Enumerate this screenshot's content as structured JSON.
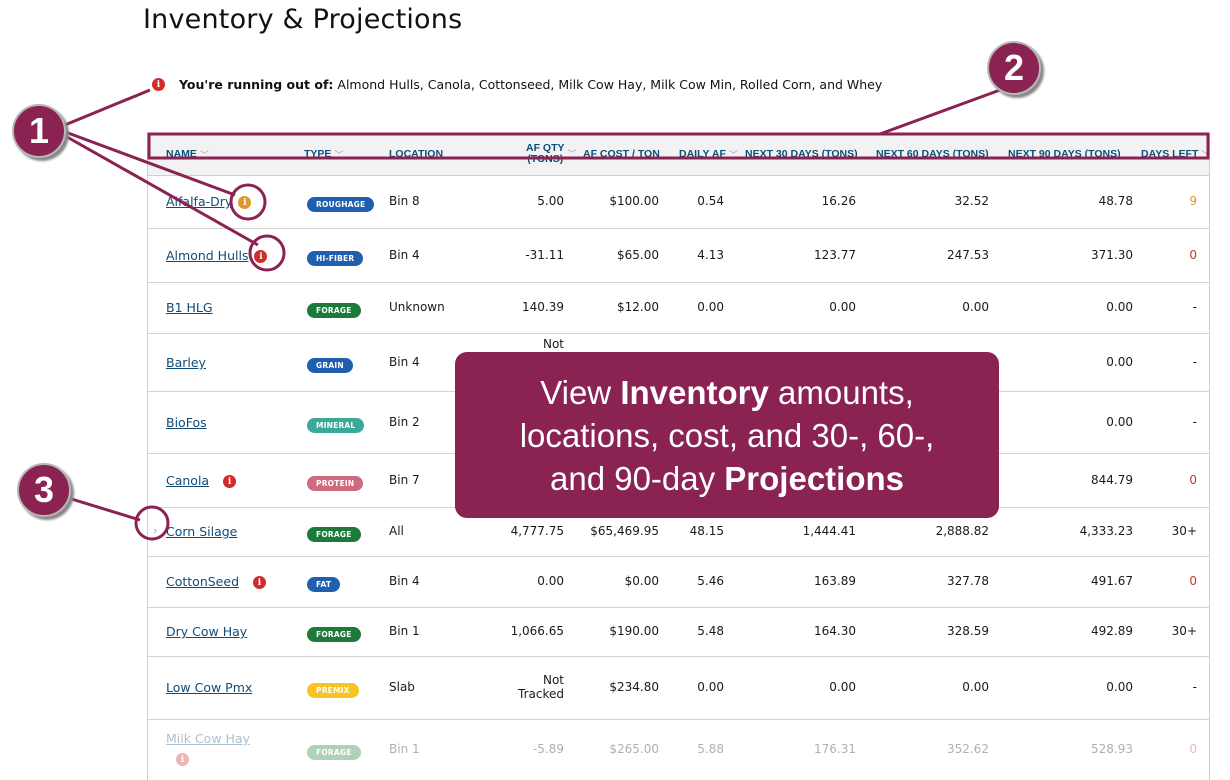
{
  "page": {
    "title": "Inventory & Projections"
  },
  "alert": {
    "icon": "alert-icon",
    "label": "You're running out of:",
    "items": "Almond Hulls, Canola, Cottonseed,  Milk Cow Hay, Milk Cow Min, Rolled Corn,  and Whey"
  },
  "colors": {
    "accent": "#8a2252",
    "header_text": "#0b4f7a",
    "link": "#0f4c78",
    "danger": "#d22b2b",
    "warning": "#e0992e",
    "roughage": "#1f5fae",
    "hi_fiber": "#1f5fae",
    "forage": "#1d7a3a",
    "grain": "#1f5fae",
    "mineral": "#3aa99a",
    "protein": "#d06a7e",
    "fat": "#1f5fae",
    "premix": "#f7c325"
  },
  "table": {
    "headers": {
      "name": "NAME",
      "type": "TYPE",
      "location": "LOCATION",
      "af_qty_line1": "AF QTY",
      "af_qty_line2": "(TONS)",
      "af_cost": "AF COST / TON",
      "daily_af": "DAILY AF",
      "next30": "NEXT 30 DAYS (TONS)",
      "next60": "NEXT 60 DAYS (TONS)",
      "next90": "NEXT 90 DAYS (TONS)",
      "days_left": "DAYS LEFT"
    },
    "rows": [
      {
        "name": "Alfalfa-Dry",
        "info": "warning",
        "type": "ROUGHAGE",
        "type_color": "#1f5fae",
        "location": "Bin 8",
        "qty": "5.00",
        "cost": "$100.00",
        "daily": "0.54",
        "n30": "16.26",
        "n60": "32.52",
        "n90": "48.78",
        "days": "9",
        "days_color": "#e0992e"
      },
      {
        "name": "Almond Hulls",
        "info": "danger",
        "type": "HI-FIBER",
        "type_color": "#1f5fae",
        "location": "Bin 4",
        "qty": "-31.11",
        "cost": "$65.00",
        "daily": "4.13",
        "n30": "123.77",
        "n60": "247.53",
        "n90": "371.30",
        "days": "0",
        "days_color": "#c0392b"
      },
      {
        "name": "B1 HLG",
        "info": "",
        "type": "FORAGE",
        "type_color": "#1d7a3a",
        "location": "Unknown",
        "qty": "140.39",
        "cost": "$12.00",
        "daily": "0.00",
        "n30": "0.00",
        "n60": "0.00",
        "n90": "0.00",
        "days": "-",
        "days_color": "#1a1a1a"
      },
      {
        "name": "Barley",
        "info": "",
        "type": "GRAIN",
        "type_color": "#1f5fae",
        "location": "Bin 4",
        "qty": "Not",
        "cost": "",
        "daily": "",
        "n30": "",
        "n60": "",
        "n90": "0.00",
        "days": "-",
        "days_color": "#1a1a1a"
      },
      {
        "name": "BioFos",
        "info": "",
        "type": "MINERAL",
        "type_color": "#3aa99a",
        "location": "Bin 2",
        "qty": "",
        "cost": "",
        "daily": "",
        "n30": "",
        "n60": "",
        "n90": "0.00",
        "days": "-",
        "days_color": "#1a1a1a"
      },
      {
        "name": "Canola",
        "info": "danger",
        "type": "PROTEIN",
        "type_color": "#d06a7e",
        "location": "Bin 7",
        "qty": "",
        "cost": "",
        "daily": "",
        "n30": "",
        "n60": "",
        "n90": "844.79",
        "days": "0",
        "days_color": "#c0392b"
      },
      {
        "name": "Corn Silage",
        "info": "",
        "expand": "›",
        "type": "FORAGE",
        "type_color": "#1d7a3a",
        "location": "All",
        "qty": "4,777.75",
        "cost": "$65,469.95",
        "daily": "48.15",
        "n30": "1,444.41",
        "n60": "2,888.82",
        "n90": "4,333.23",
        "days": "30+",
        "days_color": "#1a1a1a"
      },
      {
        "name": "CottonSeed",
        "info": "danger",
        "type": "FAT",
        "type_color": "#1f5fae",
        "location": "Bin 4",
        "qty": "0.00",
        "cost": "$0.00",
        "daily": "5.46",
        "n30": "163.89",
        "n60": "327.78",
        "n90": "491.67",
        "days": "0",
        "days_color": "#c0392b"
      },
      {
        "name": "Dry Cow Hay",
        "info": "",
        "type": "FORAGE",
        "type_color": "#1d7a3a",
        "location": "Bin 1",
        "qty": "1,066.65",
        "cost": "$190.00",
        "daily": "5.48",
        "n30": "164.30",
        "n60": "328.59",
        "n90": "492.89",
        "days": "30+",
        "days_color": "#1a1a1a"
      },
      {
        "name": "Low Cow Pmx",
        "info": "",
        "type": "PREMIX",
        "type_color": "#f7c325",
        "location": "Slab",
        "qty": "Not",
        "qty2": "Tracked",
        "cost": "$234.80",
        "daily": "0.00",
        "n30": "0.00",
        "n60": "0.00",
        "n90": "0.00",
        "days": "-",
        "days_color": "#1a1a1a"
      },
      {
        "name": "Milk Cow Hay",
        "info": "danger",
        "type": "FORAGE",
        "type_color": "#1d7a3a",
        "location": "Bin 1",
        "qty": "-5.89",
        "cost": "$265.00",
        "daily": "5.88",
        "n30": "176.31",
        "n60": "352.62",
        "n90": "528.93",
        "days": "0",
        "days_color": "#c0392b",
        "faded": true
      }
    ]
  },
  "callout": {
    "part1": "View ",
    "bold1": "Inventory",
    "part2": " amounts,",
    "line2": "locations, cost, and 30-, 60-,",
    "part3": "and 90-day ",
    "bold2": "Projections"
  },
  "markers": {
    "m1": "1",
    "m2": "2",
    "m3": "3"
  },
  "icons": {
    "sort": "chevron-down-icon",
    "info": "info-icon",
    "expand": "chevron-right-icon"
  }
}
